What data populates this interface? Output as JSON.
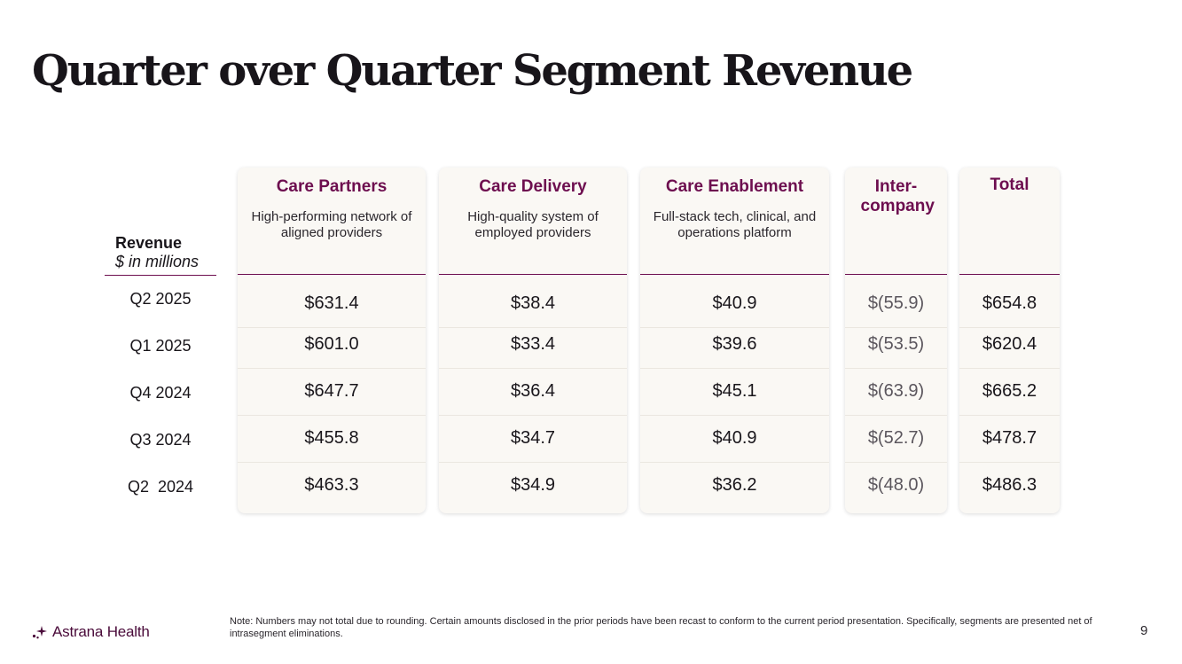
{
  "title": "Quarter over Quarter Segment Revenue",
  "revenue_header": {
    "title": "Revenue",
    "subtitle": "$ in millions"
  },
  "periods": [
    "Q2 2025",
    "Q1 2025",
    "Q4 2024",
    "Q3 2024",
    "Q2  2024"
  ],
  "segments": [
    {
      "name": "Care Partners",
      "description": "High-performing network of aligned providers",
      "values": [
        "$631.4",
        "$601.0",
        "$647.7",
        "$455.8",
        "$463.3"
      ]
    },
    {
      "name": "Care Delivery",
      "description": "High-quality system of employed providers",
      "values": [
        "$38.4",
        "$33.4",
        "$36.4",
        "$34.7",
        "$34.9"
      ]
    },
    {
      "name": "Care Enablement",
      "description": "Full-stack tech, clinical, and operations platform",
      "values": [
        "$40.9",
        "$39.6",
        "$45.1",
        "$40.9",
        "$36.2"
      ]
    },
    {
      "name": "Inter-company",
      "description": "",
      "values": [
        "$(55.9)",
        "$(53.5)",
        "$(63.9)",
        "$(52.7)",
        "$(48.0)"
      ]
    },
    {
      "name": "Total",
      "description": "",
      "values": [
        "$654.8",
        "$620.4",
        "$665.2",
        "$478.7",
        "$486.3"
      ]
    }
  ],
  "footer": {
    "logo_text": "Astrana Health",
    "note": "Note: Numbers may not total due to rounding. Certain amounts disclosed in the prior periods have been recast to conform to the current period presentation. Specifically, segments are presented net of intrasegment eliminations.",
    "page_number": "9"
  },
  "colors": {
    "accent": "#6d0e4f",
    "card_bg": "#faf8f4",
    "text": "#18151a"
  }
}
